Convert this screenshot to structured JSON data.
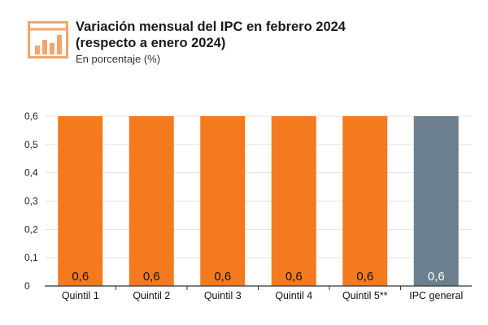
{
  "header": {
    "title_line1": "Variación mensual del IPC en febrero 2024",
    "title_line2": "(respecto a enero 2024)",
    "subtitle": "En porcentaje (%)"
  },
  "icons": {
    "logo": "bar-chart-icon"
  },
  "colors": {
    "bar_quintil": "#f47a20",
    "bar_general": "#6b7f8e",
    "logo": "#f4a56a",
    "gridline": "#e3e3e3",
    "axis": "#333333"
  },
  "chart_data": {
    "type": "bar",
    "categories": [
      "Quintil 1",
      "Quintil 2",
      "Quintil 3",
      "Quintil 4",
      "Quintil 5**",
      "IPC general"
    ],
    "values": [
      0.6,
      0.6,
      0.6,
      0.6,
      0.6,
      0.6
    ],
    "data_labels": [
      "0,6",
      "0,6",
      "0,6",
      "0,6",
      "0,6",
      "0,6"
    ],
    "bar_colors": [
      "#f47a20",
      "#f47a20",
      "#f47a20",
      "#f47a20",
      "#f47a20",
      "#6b7f8e"
    ],
    "title": "Variación mensual del IPC en febrero 2024 (respecto a enero 2024)",
    "subtitle": "En porcentaje (%)",
    "ylim": [
      0,
      0.6
    ],
    "yticks": [
      0,
      0.1,
      0.2,
      0.3,
      0.4,
      0.5,
      0.6
    ],
    "ytick_labels": [
      "0",
      "0,1",
      "0,2",
      "0,3",
      "0,4",
      "0,5",
      "0,6"
    ],
    "grid": true
  }
}
